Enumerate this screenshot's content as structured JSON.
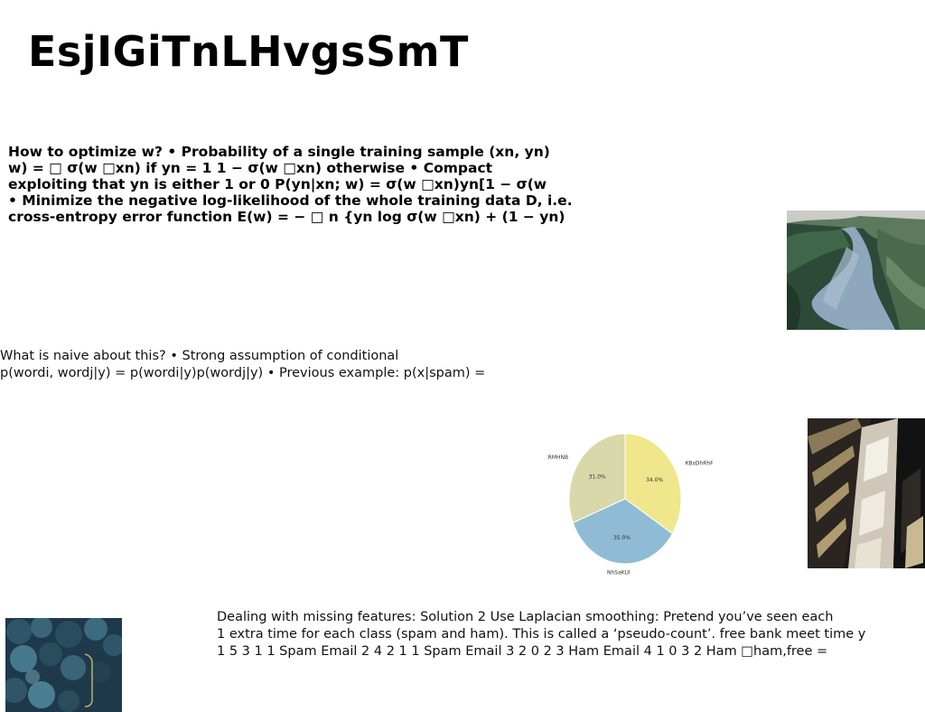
{
  "slide": {
    "title": "EsjIGiTnLHvgsSmT",
    "para1_lines": [
      "How to optimize w? • Probability of a single training sample (xn, yn)",
      "w) = □ σ(w □xn) if yn = 1 1 − σ(w □xn) otherwise • Compact",
      "exploiting that yn is either 1 or 0 P(yn|xn; w) = σ(w □xn)yn[1 − σ(w",
      "• Minimize the negative log-likelihood of the whole training data D, i.e.",
      "cross-entropy error function E(w) = − □ n {yn log σ(w □xn) + (1 − yn)"
    ],
    "para2_lines": [
      "What is naive about this? • Strong assumption of conditional",
      "p(wordi, wordj|y) = p(wordi|y)p(wordj|y) • Previous example: p(x|spam) ="
    ],
    "para3_lines": [
      "Dealing with missing features: Solution 2 Use Laplacian smoothing: Pretend you’ve seen each",
      "1 extra time for each class (spam and ham). This is called a ‘pseudo-count’. free bank meet time y",
      "1 5 3 1 1 Spam Email 2 4 2 1 1 Spam Email 3 2 0 2 3 Ham Email 4 1 0 3 2 Ham □ham,free ="
    ],
    "photos": [
      "path-through-grass-photo",
      "building-facade-photo",
      "forest-aerial-photo"
    ]
  },
  "chart_data": {
    "type": "pie",
    "title": "",
    "labels": [
      "KBsDhRhF",
      "NhSaKUI",
      "RMHNB"
    ],
    "values": [
      34.0,
      35.0,
      31.0
    ],
    "value_labels": [
      "34.0%",
      "35.0%",
      "31.0%"
    ],
    "colors": [
      "#f0e68c",
      "#8fbcd4",
      "#d8d8aa"
    ],
    "start_angle": "12 o'clock",
    "direction": "clockwise"
  }
}
